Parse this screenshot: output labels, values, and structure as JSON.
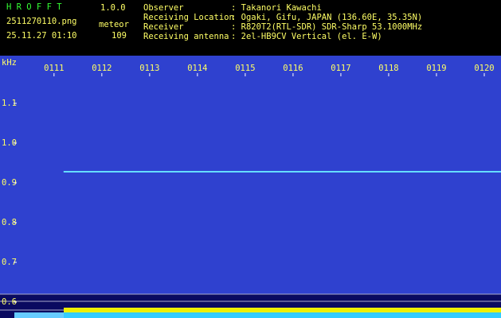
{
  "header": {
    "app_name": "H R O F F T",
    "version": "1.0.0",
    "file_name": "2511270110.png",
    "mode": "meteor",
    "timestamp": "25.11.27 01:10",
    "count": 109,
    "info": [
      {
        "label": "Observer",
        "value": ": Takanori Kawachi"
      },
      {
        "label": "Receiving Location",
        "value": ": Ogaki, Gifu, JAPAN (136.60E, 35.35N)"
      },
      {
        "label": "Receiver",
        "value": ": R820T2(RTL-SDR) SDR-Sharp 53.1000MHz"
      },
      {
        "label": "Receiving antenna",
        "value": ": 2el-HB9CV Vertical (el. E-W)"
      }
    ]
  },
  "chart_data": {
    "type": "line",
    "y_label": "kHz",
    "x": [
      71.2,
      80.35
    ],
    "values": [
      0.928,
      0.928
    ],
    "color": "#66ddff",
    "xlim": [
      69.87,
      80.35
    ],
    "xticks": [
      {
        "value": 71,
        "label": "0111"
      },
      {
        "value": 72,
        "label": "0112"
      },
      {
        "value": 73,
        "label": "0113"
      },
      {
        "value": 74,
        "label": "0114"
      },
      {
        "value": 75,
        "label": "0115"
      },
      {
        "value": 76,
        "label": "0116"
      },
      {
        "value": 77,
        "label": "0117"
      },
      {
        "value": 78,
        "label": "0118"
      },
      {
        "value": 79,
        "label": "0119"
      },
      {
        "value": 80,
        "label": "0120"
      }
    ],
    "ylim": [
      0.56,
      1.22
    ],
    "yticks": [
      {
        "value": 0.6,
        "label": "0.6"
      },
      {
        "value": 0.7,
        "label": "0.7"
      },
      {
        "value": 0.8,
        "label": "0.8"
      },
      {
        "value": 0.9,
        "label": "0.9"
      },
      {
        "value": 1.0,
        "label": "1.0"
      },
      {
        "value": 1.1,
        "label": "1.1"
      }
    ]
  }
}
